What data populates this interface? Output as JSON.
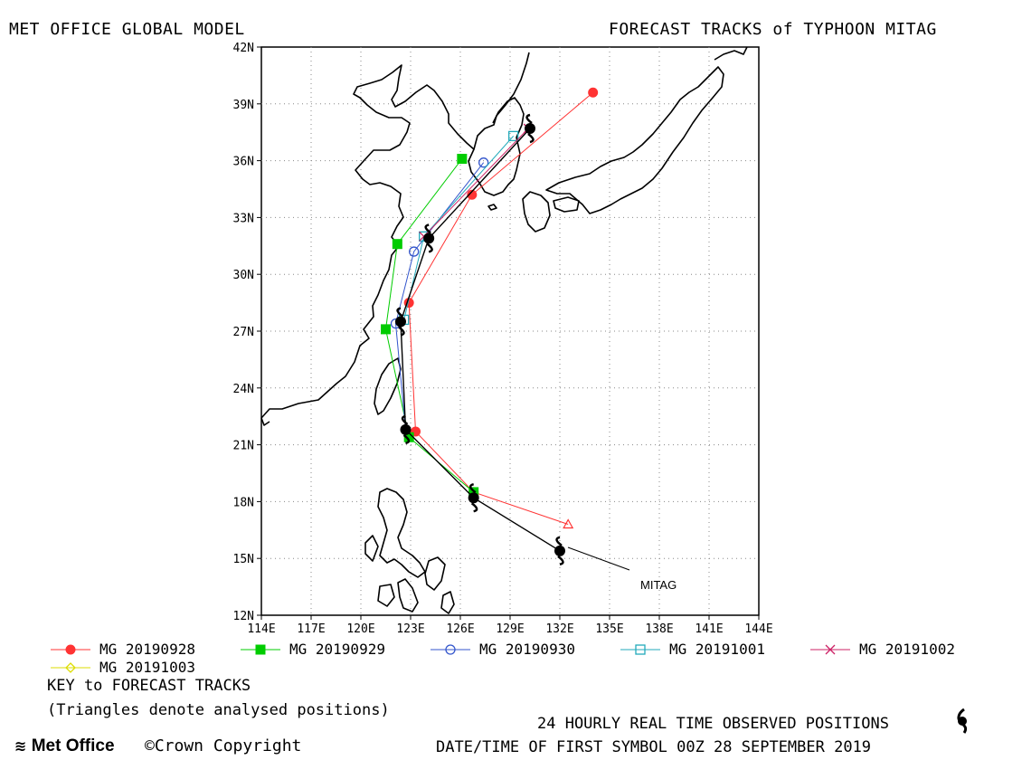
{
  "header": {
    "left_title": "MET OFFICE GLOBAL MODEL",
    "right_title": "FORECAST TRACKS of TYPHOON MITAG"
  },
  "map": {
    "lat_ticks": [
      "42N",
      "39N",
      "36N",
      "33N",
      "30N",
      "27N",
      "24N",
      "21N",
      "18N",
      "15N",
      "12N"
    ],
    "lon_ticks": [
      "114E",
      "117E",
      "120E",
      "123E",
      "126E",
      "129E",
      "132E",
      "135E",
      "138E",
      "141E",
      "144E"
    ],
    "lat_range": [
      12,
      42
    ],
    "lon_range": [
      114,
      144
    ],
    "grid": "dotted",
    "storm_label": "MITAG"
  },
  "tracks": [
    {
      "name": "MG 20190928",
      "color": "#ff3333",
      "marker": "filled-circle",
      "points": [
        [
          132.5,
          16.8
        ],
        [
          126.8,
          18.5
        ],
        [
          123.3,
          21.7
        ],
        [
          122.9,
          28.5
        ],
        [
          126.7,
          34.2
        ],
        [
          134.0,
          39.6
        ]
      ]
    },
    {
      "name": "MG 20190929",
      "color": "#00cc00",
      "marker": "filled-square",
      "points": [
        [
          126.8,
          18.5
        ],
        [
          122.9,
          21.4
        ],
        [
          121.5,
          27.1
        ],
        [
          122.2,
          31.6
        ],
        [
          126.1,
          36.1
        ]
      ]
    },
    {
      "name": "MG 20190930",
      "color": "#3355cc",
      "marker": "open-circle",
      "points": [
        [
          122.7,
          21.8
        ],
        [
          122.1,
          27.4
        ],
        [
          123.2,
          31.2
        ],
        [
          127.4,
          35.9
        ]
      ]
    },
    {
      "name": "MG 20191001",
      "color": "#22aabb",
      "marker": "open-square",
      "points": [
        [
          122.6,
          27.6
        ],
        [
          123.8,
          32.0
        ],
        [
          129.2,
          37.3
        ]
      ]
    },
    {
      "name": "MG 20191002",
      "color": "#cc2266",
      "marker": "cross",
      "points": [
        [
          123.8,
          32.0
        ],
        [
          130.1,
          37.7
        ]
      ]
    },
    {
      "name": "MG 20191003",
      "color": "#dddd00",
      "marker": "open-diamond",
      "points": [
        [
          130.2,
          37.7
        ]
      ]
    }
  ],
  "observed": {
    "points": [
      [
        132.0,
        15.4
      ],
      [
        126.8,
        18.2
      ],
      [
        122.7,
        21.8
      ],
      [
        122.4,
        27.5
      ],
      [
        124.1,
        31.9
      ],
      [
        130.2,
        37.7
      ]
    ]
  },
  "legend": {
    "key_title": "KEY to FORECAST TRACKS",
    "triangles_note": "(Triangles denote analysed positions)",
    "observed_note": "24 HOURLY REAL TIME OBSERVED POSITIONS",
    "first_symbol": "DATE/TIME OF FIRST SYMBOL 00Z 28 SEPTEMBER 2019"
  },
  "footer": {
    "logo": "Met Office",
    "copyright": "©Crown Copyright"
  }
}
